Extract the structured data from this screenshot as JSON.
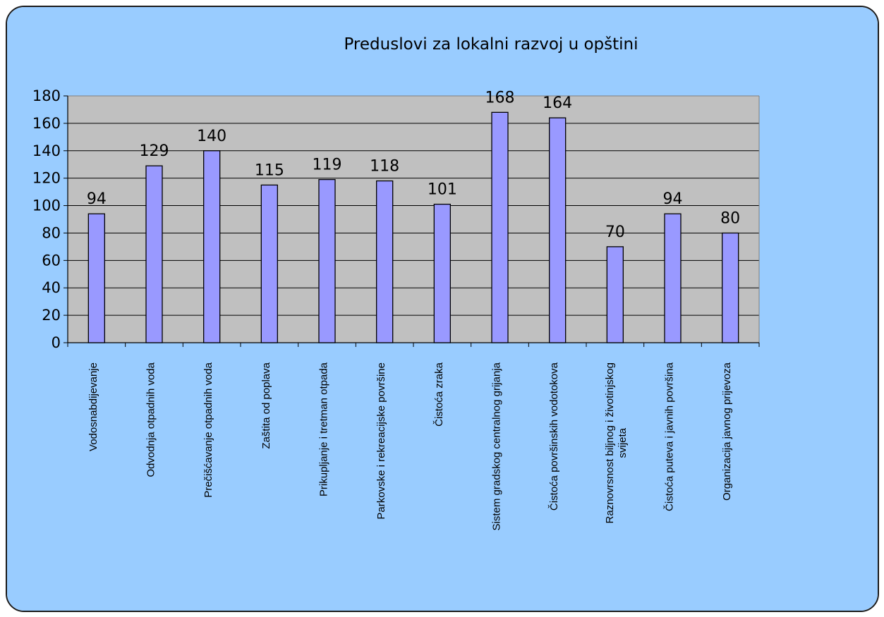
{
  "chart_data": {
    "type": "bar",
    "title": "Preduslovi za lokalni razvoj u opštini",
    "xlabel": "",
    "ylabel": "",
    "categories": [
      "Vodosnabdijevanje",
      "Odvodnja otpadnih voda",
      "Prečišćavanje otpadnih voda",
      "Zaštita od poplava",
      "Prikupljanje i tretman otpada",
      "Parkovske i rekreacijske površine",
      "Čistoća zraka",
      "Sistem gradskog centralnog grijanja",
      "Čistoća površinskih vodotokova",
      "Raznovrsnost biljnog i životinjskog svijeta",
      "Čistoća puteva i javnih površina",
      "Organizacija javnog prijevoza"
    ],
    "values": [
      94,
      129,
      140,
      115,
      119,
      118,
      101,
      168,
      164,
      70,
      94,
      80
    ],
    "ylim": [
      0,
      180
    ],
    "yticks": [
      0,
      20,
      40,
      60,
      80,
      100,
      120,
      140,
      160,
      180
    ],
    "grid": true,
    "legend": "none",
    "data_labels": true,
    "colors": {
      "background": "#99ccff",
      "plot_area": "#c0c0c0",
      "bar_fill": "#9999ff",
      "bar_stroke": "#000000",
      "gridline": "#000000"
    }
  }
}
